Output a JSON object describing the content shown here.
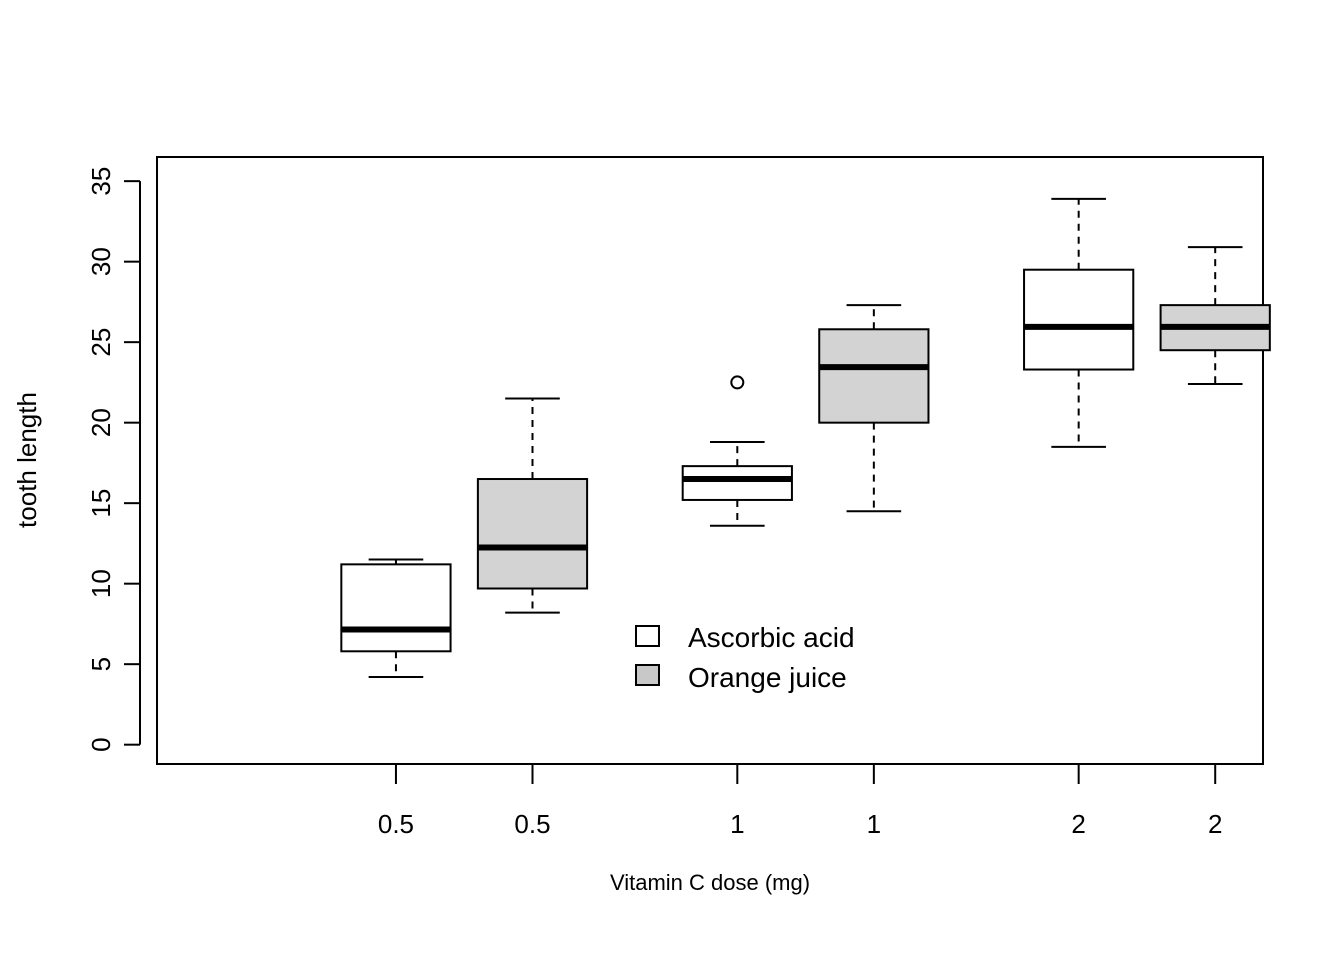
{
  "chart_data": {
    "type": "boxplot",
    "xlabel": "Vitamin C dose (mg)",
    "ylabel": "tooth length",
    "ylim": [
      -1.2,
      36.5
    ],
    "yticks": [
      0,
      5,
      10,
      15,
      20,
      25,
      30,
      35
    ],
    "ytick_labels": [
      "0",
      "5",
      "10",
      "15",
      "20",
      "25",
      "30",
      "35"
    ],
    "xlim": [
      -0.2,
      7.9
    ],
    "legend_position": "center",
    "series": [
      {
        "name": "Ascorbic acid",
        "fill": "#ffffff"
      },
      {
        "name": "Orange juice",
        "fill": "#d3d3d3"
      }
    ],
    "boxes": [
      {
        "label": "0.5",
        "series": 0,
        "position": 1.55,
        "min": 4.2,
        "q1": 5.8,
        "median": 7.15,
        "q3": 11.2,
        "max": 11.5,
        "outliers": []
      },
      {
        "label": "0.5",
        "series": 1,
        "position": 2.55,
        "min": 8.2,
        "q1": 9.7,
        "median": 12.25,
        "q3": 16.5,
        "max": 21.5,
        "outliers": []
      },
      {
        "label": "1",
        "series": 0,
        "position": 4.05,
        "min": 13.6,
        "q1": 15.2,
        "median": 16.5,
        "q3": 17.3,
        "max": 18.8,
        "outliers": [
          22.5
        ]
      },
      {
        "label": "1",
        "series": 1,
        "position": 5.05,
        "min": 14.5,
        "q1": 20.0,
        "median": 23.45,
        "q3": 25.8,
        "max": 27.3,
        "outliers": []
      },
      {
        "label": "2",
        "series": 0,
        "position": 6.55,
        "min": 18.5,
        "q1": 23.3,
        "median": 25.95,
        "q3": 29.5,
        "max": 33.9,
        "outliers": []
      },
      {
        "label": "2",
        "series": 1,
        "position": 7.55,
        "min": 22.4,
        "q1": 24.5,
        "median": 25.95,
        "q3": 27.3,
        "max": 30.9,
        "outliers": []
      }
    ]
  }
}
